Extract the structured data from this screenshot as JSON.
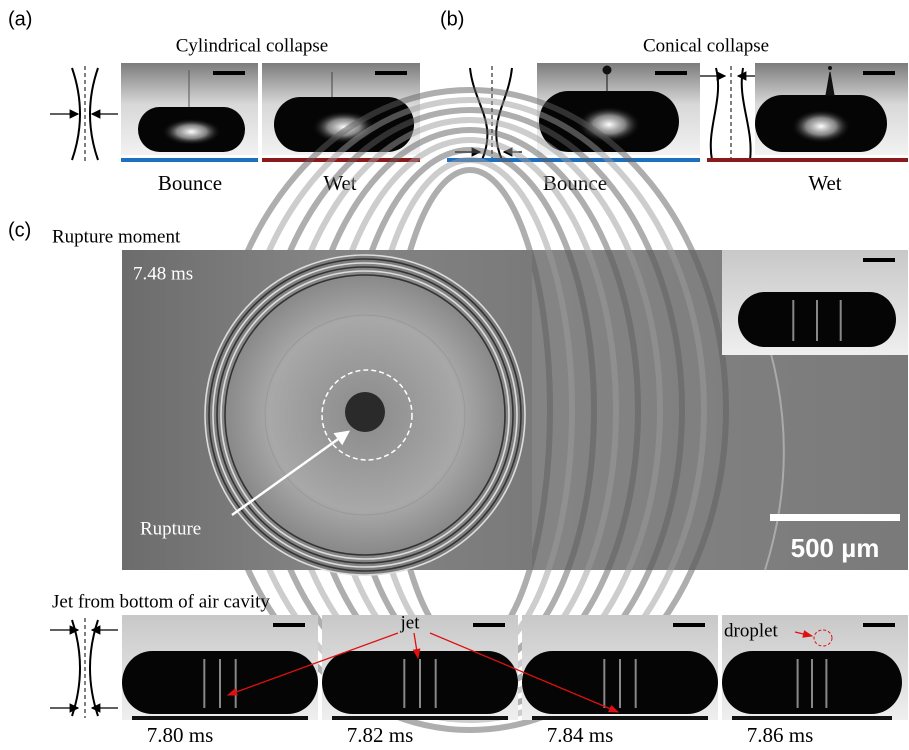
{
  "panels": {
    "a": {
      "label": "(a)",
      "title": "Cylindrical collapse",
      "captions": [
        "Bounce",
        "Wet"
      ]
    },
    "b": {
      "label": "(b)",
      "title": "Conical collapse",
      "captions": [
        "Bounce",
        "Wet"
      ]
    },
    "c": {
      "label": "(c)",
      "title": "Rupture moment",
      "time": "7.48 ms",
      "annotation": "Rupture",
      "scale_bar": "500 µm",
      "jet_title": "Jet from bottom of air cavity",
      "jet_label": "jet",
      "droplet_label": "droplet",
      "frame_times": [
        "7.80 ms",
        "7.82 ms",
        "7.84 ms",
        "7.86 ms"
      ]
    }
  }
}
